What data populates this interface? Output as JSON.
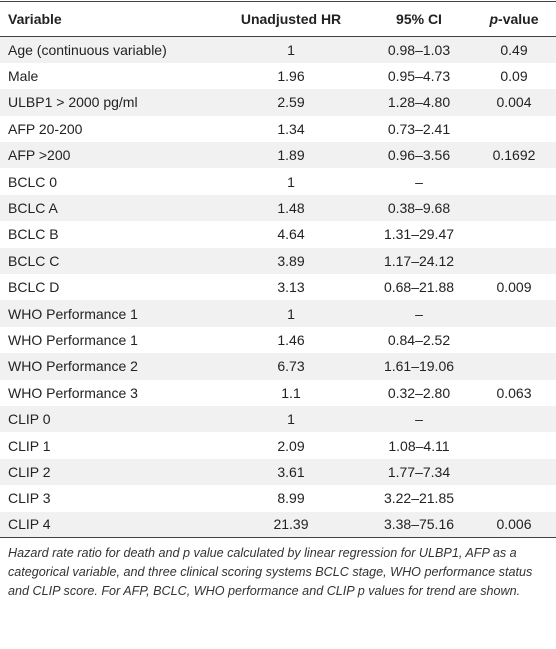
{
  "table": {
    "header": [
      "Variable",
      "Unadjusted HR",
      "95% CI",
      "p-value"
    ],
    "rows": [
      [
        "Age (continuous variable)",
        "1",
        "0.98–1.03",
        "0.49"
      ],
      [
        "Male",
        "1.96",
        "0.95–4.73",
        "0.09"
      ],
      [
        "ULBP1 > 2000 pg/ml",
        "2.59",
        "1.28–4.80",
        "0.004"
      ],
      [
        "AFP 20-200",
        "1.34",
        "0.73–2.41",
        null
      ],
      [
        "AFP >200",
        "1.89",
        "0.96–3.56",
        "0.1692"
      ],
      [
        "BCLC 0",
        "1",
        "–",
        null
      ],
      [
        "BCLC A",
        "1.48",
        "0.38–9.68",
        null
      ],
      [
        "BCLC B",
        "4.64",
        "1.31–29.47",
        null
      ],
      [
        "BCLC C",
        "3.89",
        "1.17–24.12",
        null
      ],
      [
        "BCLC D",
        "3.13",
        "0.68–21.88",
        "0.009"
      ],
      [
        "WHO Performance 1",
        "1",
        "–",
        null
      ],
      [
        "WHO Performance 1",
        "1.46",
        "0.84–2.52",
        null
      ],
      [
        "WHO Performance 2",
        "6.73",
        "1.61–19.06",
        null
      ],
      [
        "WHO Performance 3",
        "1.1",
        "0.32–2.80",
        "0.063"
      ],
      [
        "CLIP 0",
        "1",
        "–",
        null
      ],
      [
        "CLIP 1",
        "2.09",
        "1.08–4.11",
        null
      ],
      [
        "CLIP 2",
        "3.61",
        "1.77–7.34",
        null
      ],
      [
        "CLIP 3",
        "8.99",
        "3.22–21.85",
        null
      ],
      [
        "CLIP 4",
        "21.39",
        "3.38–75.16",
        "0.006"
      ]
    ]
  },
  "footnote": "Hazard rate ratio for death and p value calculated by linear regression for ULBP1, AFP as a categorical variable, and three clinical scoring systems BCLC stage, WHO performance status and CLIP score. For AFP, BCLC, WHO performance and CLIP p values for trend are shown."
}
